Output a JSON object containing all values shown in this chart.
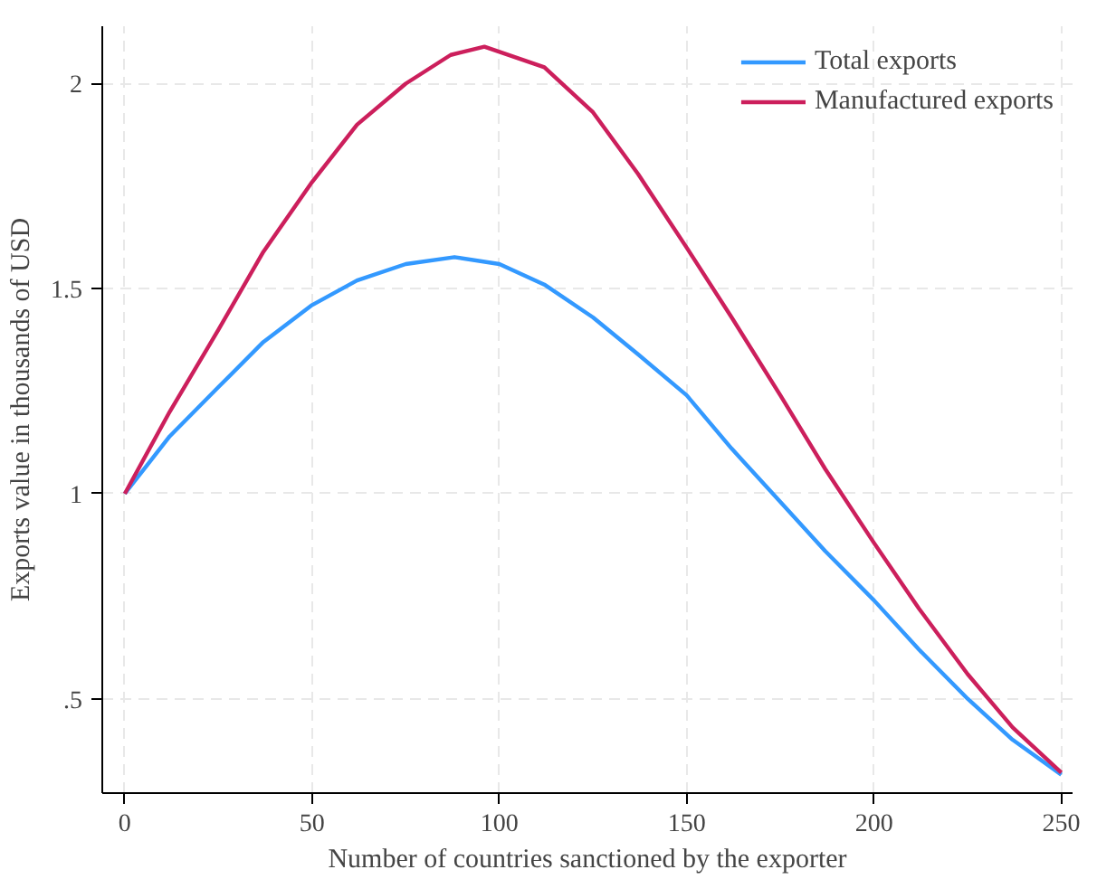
{
  "chart_data": {
    "type": "line",
    "xlabel": "Number of countries sanctioned by the exporter",
    "ylabel": "Exports value in thousands of USD",
    "xlim": [
      -6,
      253
    ],
    "ylim": [
      0.27,
      2.14
    ],
    "xticks": [
      0,
      50,
      100,
      150,
      200,
      250
    ],
    "yticks": [
      {
        "value": 0.5,
        "label": ".5"
      },
      1,
      1.5,
      2
    ],
    "grid": true,
    "legend": "top right",
    "line_style": "solid",
    "marker": "none",
    "series": [
      {
        "name": "Total exports",
        "color": "#3399ff",
        "x": [
          0,
          12,
          25,
          37,
          50,
          62,
          75,
          88,
          100,
          112,
          125,
          137,
          150,
          162,
          175,
          187,
          200,
          212,
          225,
          237,
          250
        ],
        "values": [
          1.0,
          1.14,
          1.26,
          1.37,
          1.46,
          1.52,
          1.56,
          1.577,
          1.56,
          1.51,
          1.43,
          1.34,
          1.24,
          1.11,
          0.98,
          0.86,
          0.74,
          0.62,
          0.5,
          0.4,
          0.315
        ]
      },
      {
        "name": "Manufactured exports",
        "color": "#cc1f5c",
        "x": [
          0,
          12,
          25,
          37,
          50,
          62,
          75,
          87,
          96,
          112,
          125,
          137,
          150,
          162,
          175,
          187,
          200,
          212,
          225,
          237,
          250
        ],
        "values": [
          1.0,
          1.2,
          1.4,
          1.59,
          1.76,
          1.9,
          2.0,
          2.07,
          2.09,
          2.04,
          1.93,
          1.78,
          1.6,
          1.43,
          1.24,
          1.06,
          0.88,
          0.72,
          0.56,
          0.43,
          0.32
        ]
      }
    ]
  }
}
